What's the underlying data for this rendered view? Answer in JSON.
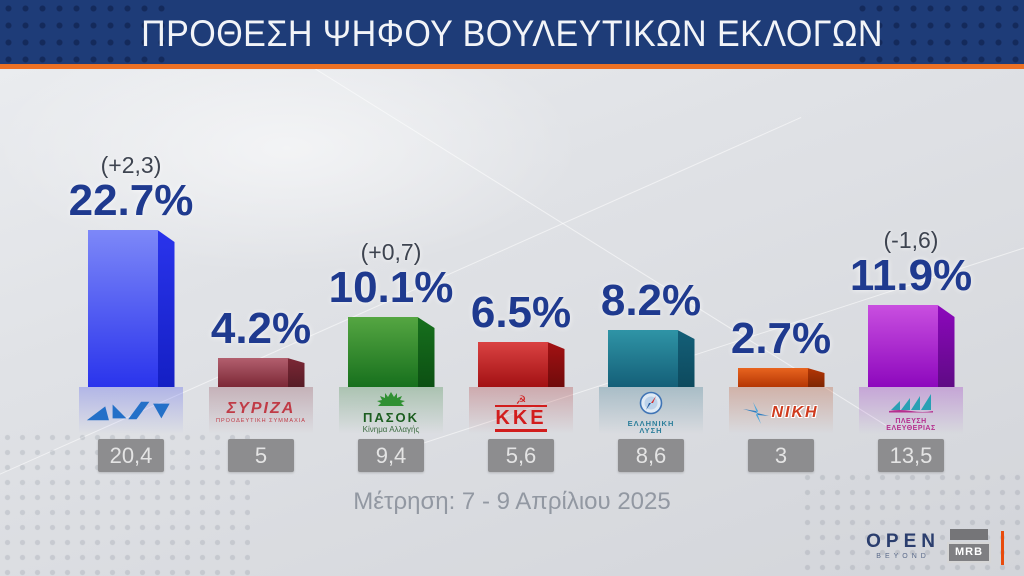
{
  "header": {
    "title": "ΠΡΟΘΕΣΗ ΨΗΦΟΥ ΒΟΥΛΕΥΤΙΚΩΝ ΕΚΛΟΓΩΝ"
  },
  "footnote": "Μέτρηση: 7 - 9 Απρίλιου 2025",
  "footer": {
    "open": "OPEN",
    "open_sub": "BEYOND",
    "mrb": "MRB"
  },
  "colors": {
    "header_bg": "#1e3c78",
    "accent_orange": "#ed7124",
    "percent_text": "#1f3a8f",
    "delta_text": "#3e4450",
    "value_box_bg": "#8d8d8f",
    "footnote_text": "#9298a2"
  },
  "parties": [
    {
      "name": "ΝΔ",
      "percent_label": "22.7%",
      "value": 22.7,
      "change": "(+2,3)",
      "previous": "20,4",
      "colors": {
        "top": "#7d88f8",
        "bottom": "#2a34ec",
        "side": "#141fc4"
      },
      "logo": {
        "icon": "nd-triangles-logo"
      }
    },
    {
      "name": "ΣΥΡΙΖΑ",
      "percent_label": "4.2%",
      "value": 4.2,
      "change": "",
      "previous": "5",
      "colors": {
        "top": "#b25f6e",
        "bottom": "#7c2836",
        "side": "#571c26"
      },
      "logo": {
        "line1": "ΣΥΡΙΖΑ",
        "line2": "ΠΡΟΟΔΕΥΤΙΚΗ ΣΥΜΜΑΧΙΑ"
      }
    },
    {
      "name": "ΠΑΣΟΚ",
      "percent_label": "10.1%",
      "value": 10.1,
      "change": "(+0,7)",
      "previous": "9,4",
      "colors": {
        "top": "#55a642",
        "bottom": "#17701d",
        "side": "#0c5013"
      },
      "logo": {
        "icon": "green-sun-icon",
        "line1": "ΠΑΣΟΚ",
        "line2": "Κίνημα Αλλαγής"
      }
    },
    {
      "name": "ΚΚΕ",
      "percent_label": "6.5%",
      "value": 6.5,
      "change": "",
      "previous": "5,6",
      "colors": {
        "top": "#da4242",
        "bottom": "#a31113",
        "side": "#700b0b"
      },
      "logo": {
        "icon": "hammer-sickle-icon",
        "line1": "ΚΚΕ"
      }
    },
    {
      "name": "ΕΛΛΗΝΙΚΗ ΛΥΣΗ",
      "percent_label": "8.2%",
      "value": 8.2,
      "change": "",
      "previous": "8,6",
      "colors": {
        "top": "#2f94a6",
        "bottom": "#145f78",
        "side": "#0d4a5e"
      },
      "logo": {
        "icon": "compass-icon",
        "line1": "ΕΛΛΗΝΙΚΗ",
        "line2": "ΛΥΣΗ"
      }
    },
    {
      "name": "ΝΙΚΗ",
      "percent_label": "2.7%",
      "value": 2.7,
      "change": "",
      "previous": "3",
      "colors": {
        "top": "#e8641f",
        "bottom": "#b53604",
        "side": "#7e2603"
      },
      "logo": {
        "icon": "blue-spark-icon",
        "line1": "ΝΙΚΗ"
      }
    },
    {
      "name": "ΠΛΕΥΣΗ ΕΛΕΥΘΕΡΙΑΣ",
      "percent_label": "11.9%",
      "value": 11.9,
      "change": "(-1,6)",
      "previous": "13,5",
      "colors": {
        "top": "#c94fe0",
        "bottom": "#8d08bd",
        "side": "#5f0a85"
      },
      "logo": {
        "icon": "sailboat-icon",
        "line1": "ΠΛΕΥΣΗ",
        "line2": "ΕΛΕΥΘΕΡΙΑΣ"
      }
    }
  ],
  "chart_data": {
    "type": "bar",
    "title": "ΠΡΟΘΕΣΗ ΨΗΦΟΥ ΒΟΥΛΕΥΤΙΚΩΝ ΕΚΛΟΓΩΝ",
    "categories": [
      "ΝΔ",
      "ΣΥΡΙΖΑ",
      "ΠΑΣΟΚ",
      "ΚΚΕ",
      "ΕΛΛΗΝΙΚΗ ΛΥΣΗ",
      "ΝΙΚΗ",
      "ΠΛΕΥΣΗ ΕΛΕΥΘΕΡΙΑΣ"
    ],
    "values": [
      22.7,
      4.2,
      10.1,
      6.5,
      8.2,
      2.7,
      11.9
    ],
    "changes": [
      "+2,3",
      null,
      "+0,7",
      null,
      null,
      null,
      "-1,6"
    ],
    "previous_values": [
      20.4,
      5,
      9.4,
      5.6,
      8.6,
      3,
      13.5
    ],
    "bar_colors": [
      "#2a34ec",
      "#7c2836",
      "#17701d",
      "#a31113",
      "#145f78",
      "#b53604",
      "#8d08bd"
    ],
    "note": "Μέτρηση: 7 - 9 Απρίλιου 2025",
    "xlabel": "",
    "ylabel": "",
    "ylim": [
      0,
      25
    ],
    "grid": false,
    "legend": false
  }
}
